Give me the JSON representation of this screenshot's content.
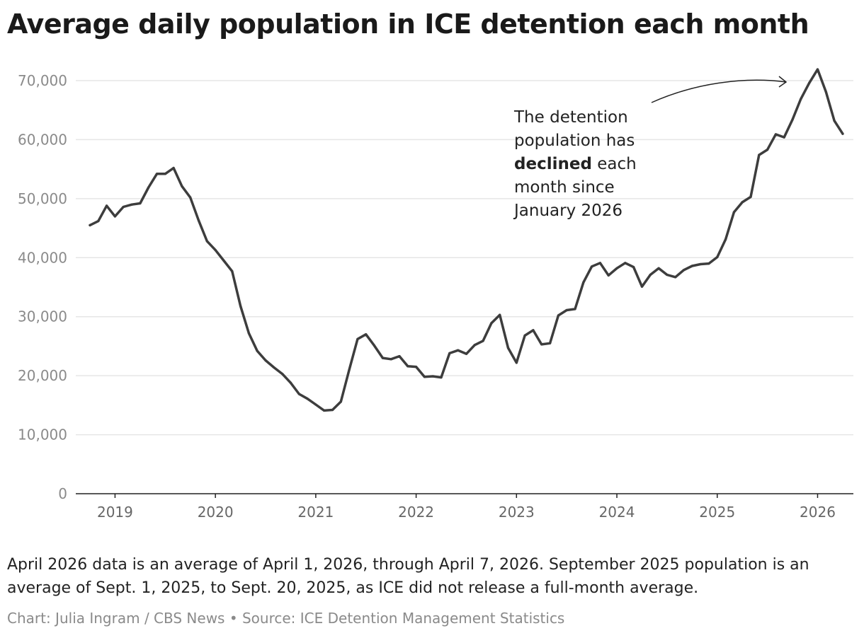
{
  "chart_data": {
    "type": "line",
    "title": "Average daily population in ICE detention each month",
    "xlabel": "",
    "ylabel": "",
    "ylim": [
      0,
      70000
    ],
    "yticks": [
      0,
      10000,
      20000,
      30000,
      40000,
      50000,
      60000,
      70000
    ],
    "ytick_labels": [
      "0",
      "10,000",
      "20,000",
      "30,000",
      "40,000",
      "50,000",
      "60,000",
      "70,000"
    ],
    "xtick_labels": [
      "2019",
      "2020",
      "2021",
      "2022",
      "2023",
      "2024",
      "2025",
      "2026"
    ],
    "grid": "horizontal",
    "line_color": "#3d3d3d",
    "start_month": "2018-10",
    "x": [
      "2018-10",
      "2018-11",
      "2018-12",
      "2019-01",
      "2019-02",
      "2019-03",
      "2019-04",
      "2019-05",
      "2019-06",
      "2019-07",
      "2019-08",
      "2019-09",
      "2019-10",
      "2019-11",
      "2019-12",
      "2020-01",
      "2020-02",
      "2020-03",
      "2020-04",
      "2020-05",
      "2020-06",
      "2020-07",
      "2020-08",
      "2020-09",
      "2020-10",
      "2020-11",
      "2020-12",
      "2021-01",
      "2021-02",
      "2021-03",
      "2021-04",
      "2021-05",
      "2021-06",
      "2021-07",
      "2021-08",
      "2021-09",
      "2021-10",
      "2021-11",
      "2021-12",
      "2022-01",
      "2022-02",
      "2022-03",
      "2022-04",
      "2022-05",
      "2022-06",
      "2022-07",
      "2022-08",
      "2022-09",
      "2022-10",
      "2022-11",
      "2022-12",
      "2023-01",
      "2023-02",
      "2023-03",
      "2023-04",
      "2023-05",
      "2023-06",
      "2023-07",
      "2023-08",
      "2023-09",
      "2023-10",
      "2023-11",
      "2023-12",
      "2024-01",
      "2024-02",
      "2024-03",
      "2024-04",
      "2024-05",
      "2024-06",
      "2024-07",
      "2024-08",
      "2024-09",
      "2024-10",
      "2024-11",
      "2024-12",
      "2025-01",
      "2025-02",
      "2025-03",
      "2025-04",
      "2025-05",
      "2025-06",
      "2025-07",
      "2025-08",
      "2025-09",
      "2025-10",
      "2025-11",
      "2025-12",
      "2026-01",
      "2026-02",
      "2026-03",
      "2026-04"
    ],
    "values": [
      45500,
      46200,
      48800,
      47000,
      48600,
      49000,
      49200,
      51900,
      54200,
      54200,
      55200,
      52100,
      50200,
      46300,
      42800,
      41300,
      39500,
      37700,
      31800,
      27200,
      24200,
      22600,
      21400,
      20300,
      18800,
      16900,
      16100,
      15100,
      14100,
      14200,
      15600,
      21000,
      26200,
      27000,
      25100,
      23000,
      22800,
      23300,
      21600,
      21500,
      19800,
      19900,
      19700,
      23800,
      24300,
      23700,
      25200,
      25900,
      28900,
      30300,
      24700,
      22200,
      26800,
      27700,
      25300,
      25500,
      30200,
      31100,
      31300,
      35800,
      38500,
      39100,
      37000,
      38200,
      39100,
      38400,
      35100,
      37100,
      38200,
      37100,
      36700,
      37900,
      38600,
      38900,
      39000,
      40100,
      43100,
      47700,
      49400,
      50300,
      57400,
      58300,
      60900,
      60400,
      63400,
      66900,
      69600,
      71900,
      68100,
      63200,
      61000
    ],
    "annotation": {
      "before": "The detention population has ",
      "bold": "declined",
      "after": " each month since January 2026"
    }
  },
  "note": "April 2026 data is an average of April 1, 2026, through April 7, 2026. September 2025 population is an average of Sept. 1, 2025, to Sept. 20, 2025, as ICE did not release a full-month average.",
  "credit": "Chart: Julia Ingram / CBS News • Source: ICE Detention Management Statistics"
}
